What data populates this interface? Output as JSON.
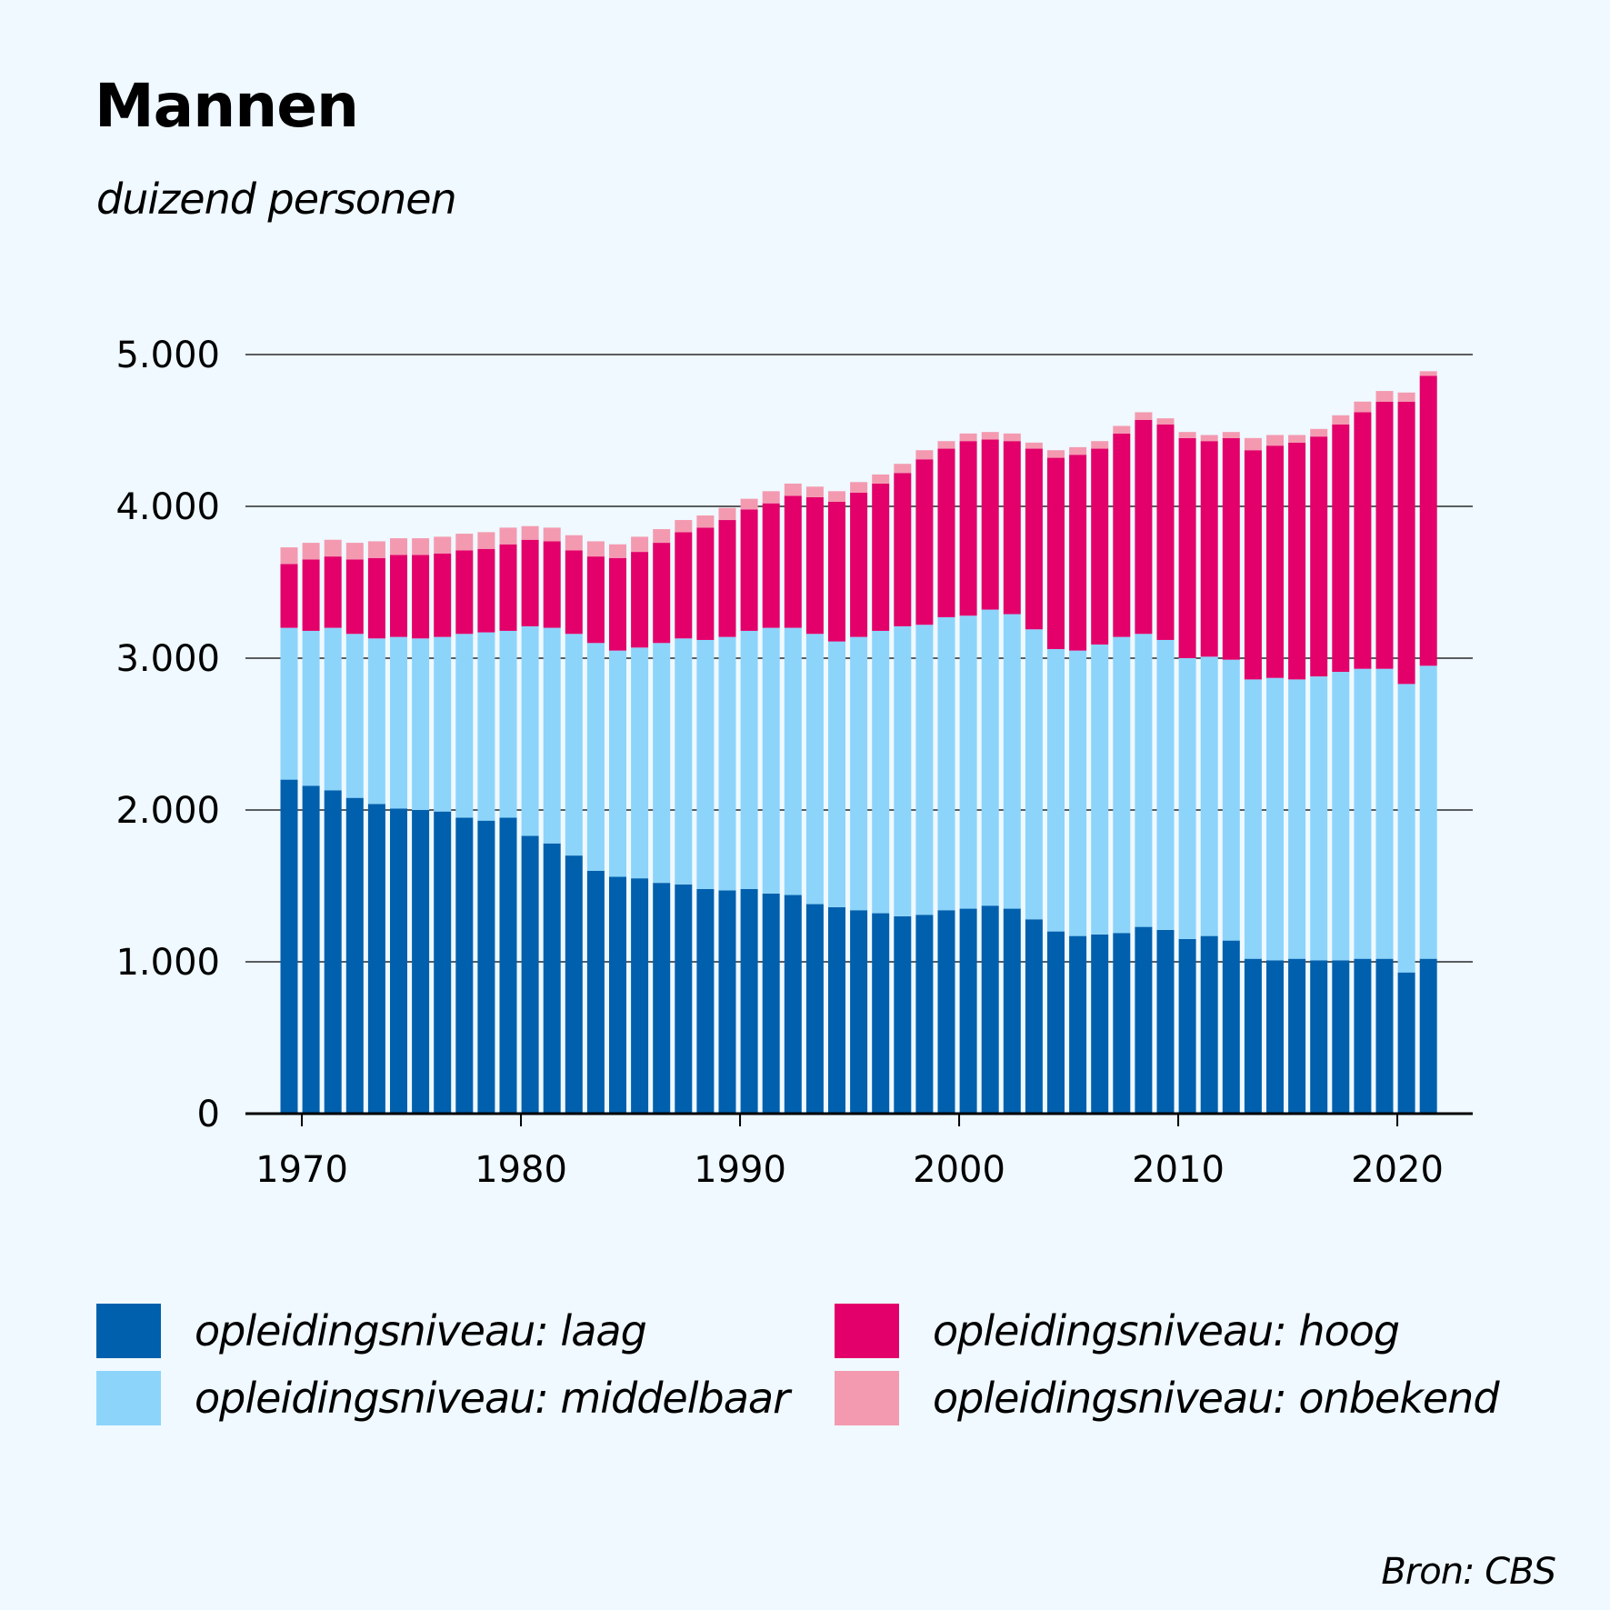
{
  "header": {
    "title": "Mannen",
    "subtitle": "duizend personen"
  },
  "source": "Bron: CBS",
  "colors": {
    "laag": "#0060ad",
    "middelbaar": "#8dd4fb",
    "hoog": "#e3006a",
    "onbekend": "#f49ab0"
  },
  "chart_data": {
    "type": "bar",
    "stacked": true,
    "title": "Mannen",
    "subtitle": "duizend personen",
    "xlabel": "",
    "ylabel": "duizend personen",
    "ylim": [
      0,
      5000
    ],
    "yticks": [
      0,
      1000,
      2000,
      3000,
      4000,
      5000
    ],
    "ytick_labels": [
      "0",
      "1.000",
      "2.000",
      "3.000",
      "4.000",
      "5.000"
    ],
    "xticks": [
      1970,
      1980,
      1990,
      2000,
      2010,
      2020
    ],
    "legend_position": "bottom",
    "categories": [
      1969,
      1970,
      1971,
      1972,
      1973,
      1974,
      1975,
      1976,
      1977,
      1978,
      1979,
      1980,
      1981,
      1982,
      1983,
      1984,
      1985,
      1986,
      1987,
      1988,
      1989,
      1990,
      1991,
      1992,
      1993,
      1994,
      1995,
      1996,
      1997,
      1998,
      1999,
      2000,
      2001,
      2002,
      2003,
      2004,
      2005,
      2006,
      2007,
      2008,
      2009,
      2010,
      2011,
      2012,
      2013,
      2014,
      2015,
      2016,
      2017,
      2018,
      2019,
      2020,
      2021
    ],
    "series": [
      {
        "key": "laag",
        "name": "opleidingsniveau: laag",
        "values": [
          2200,
          2160,
          2130,
          2080,
          2040,
          2010,
          2000,
          1990,
          1950,
          1930,
          1950,
          1830,
          1780,
          1700,
          1600,
          1560,
          1550,
          1520,
          1510,
          1480,
          1470,
          1480,
          1450,
          1440,
          1380,
          1360,
          1340,
          1320,
          1300,
          1310,
          1340,
          1350,
          1370,
          1350,
          1280,
          1200,
          1170,
          1180,
          1190,
          1230,
          1210,
          1150,
          1170,
          1140,
          1020,
          1010,
          1020,
          1010,
          1010,
          1020,
          1020,
          930,
          1020
        ]
      },
      {
        "key": "middelbaar",
        "name": "opleidingsniveau: middelbaar",
        "values": [
          1000,
          1020,
          1070,
          1080,
          1090,
          1130,
          1130,
          1150,
          1210,
          1240,
          1230,
          1380,
          1420,
          1460,
          1500,
          1490,
          1520,
          1580,
          1620,
          1640,
          1670,
          1700,
          1750,
          1760,
          1780,
          1750,
          1800,
          1860,
          1910,
          1910,
          1930,
          1930,
          1950,
          1940,
          1910,
          1860,
          1880,
          1910,
          1950,
          1930,
          1910,
          1850,
          1840,
          1850,
          1840,
          1860,
          1840,
          1870,
          1900,
          1910,
          1910,
          1900,
          1930
        ]
      },
      {
        "key": "hoog",
        "name": "opleidingsniveau: hoog",
        "values": [
          420,
          470,
          470,
          490,
          530,
          540,
          550,
          550,
          550,
          550,
          570,
          570,
          570,
          550,
          570,
          610,
          630,
          660,
          700,
          740,
          770,
          800,
          820,
          870,
          900,
          920,
          950,
          970,
          1010,
          1090,
          1110,
          1150,
          1120,
          1140,
          1190,
          1260,
          1290,
          1290,
          1340,
          1410,
          1420,
          1450,
          1420,
          1460,
          1510,
          1530,
          1560,
          1580,
          1630,
          1690,
          1760,
          1860,
          1910
        ]
      },
      {
        "key": "onbekend",
        "name": "opleidingsniveau: onbekend",
        "values": [
          110,
          110,
          110,
          110,
          110,
          110,
          110,
          110,
          110,
          110,
          110,
          90,
          90,
          100,
          100,
          90,
          100,
          90,
          80,
          80,
          80,
          70,
          80,
          80,
          70,
          70,
          70,
          60,
          60,
          60,
          50,
          50,
          50,
          50,
          40,
          50,
          50,
          50,
          50,
          50,
          40,
          40,
          40,
          40,
          80,
          70,
          50,
          50,
          60,
          70,
          70,
          60,
          30
        ]
      }
    ]
  },
  "legend": [
    {
      "key": "laag",
      "label": "opleidingsniveau: laag"
    },
    {
      "key": "hoog",
      "label": "opleidingsniveau: hoog"
    },
    {
      "key": "middelbaar",
      "label": "opleidingsniveau: middelbaar"
    },
    {
      "key": "onbekend",
      "label": "opleidingsniveau: onbekend"
    }
  ]
}
